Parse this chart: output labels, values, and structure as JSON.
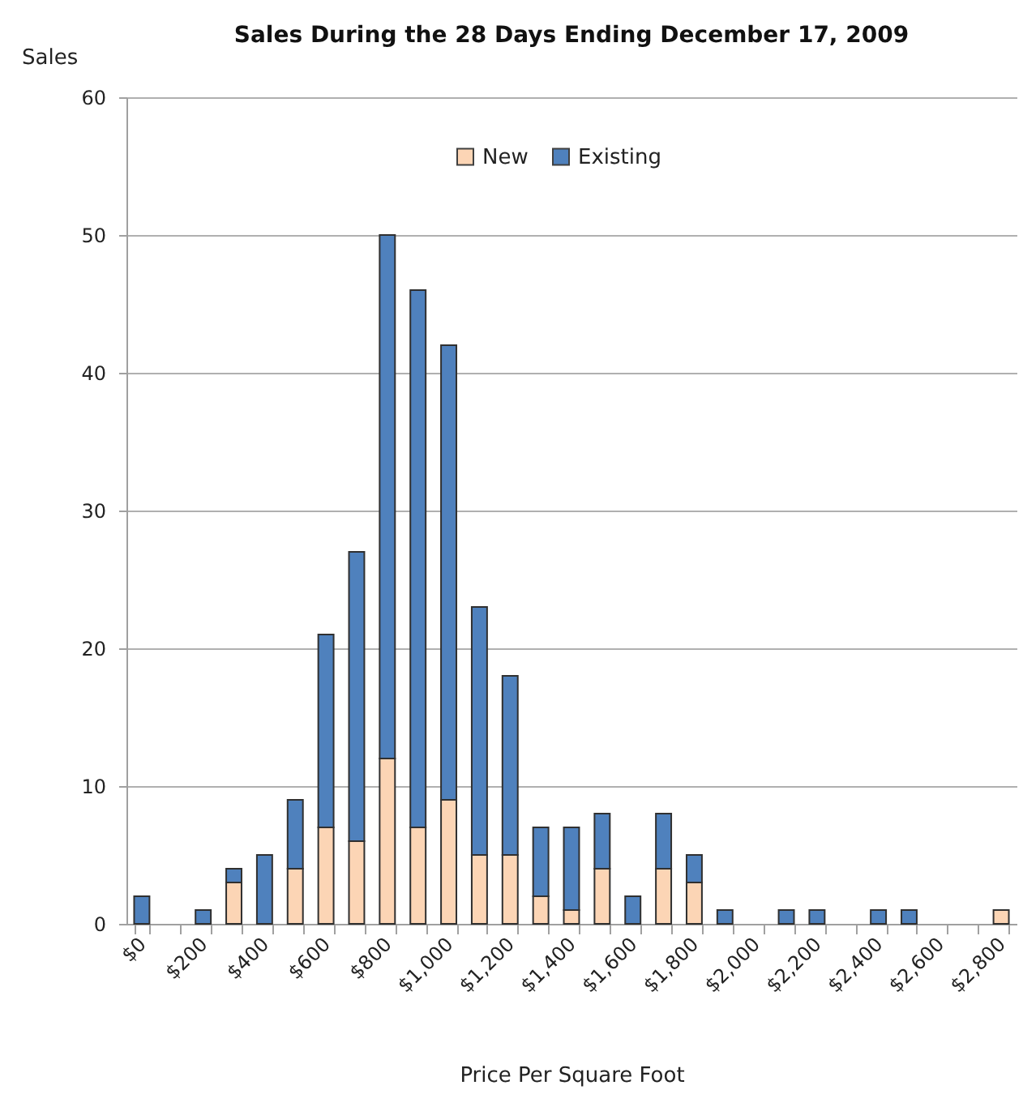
{
  "chart_data": {
    "type": "bar",
    "title": "Sales During the 28 Days Ending December 17, 2009",
    "xlabel": "Price Per Square Foot",
    "ylabel": "Sales",
    "categories": [
      "$0",
      null,
      "$200",
      null,
      "$400",
      null,
      "$600",
      null,
      "$800",
      null,
      "$1,000",
      null,
      "$1,200",
      null,
      "$1,400",
      null,
      "$1,600",
      null,
      "$1,800",
      null,
      "$2,000",
      null,
      "$2,200",
      null,
      "$2,400",
      null,
      "$2,600",
      null,
      "$2,800"
    ],
    "stacked": true,
    "series": [
      {
        "name": "New",
        "color": "#fcd5b5",
        "values": [
          0,
          0,
          0,
          3,
          0,
          4,
          7,
          6,
          12,
          7,
          9,
          5,
          5,
          2,
          1,
          4,
          0,
          4,
          3,
          0,
          0,
          0,
          0,
          0,
          0,
          0,
          0,
          0,
          1
        ]
      },
      {
        "name": "Existing",
        "color": "#4f81bd",
        "values": [
          2,
          0,
          1,
          1,
          5,
          5,
          14,
          21,
          38,
          39,
          33,
          18,
          13,
          5,
          6,
          4,
          2,
          4,
          2,
          1,
          0,
          1,
          1,
          0,
          1,
          1,
          0,
          0,
          0
        ]
      }
    ],
    "ylim": [
      0,
      60
    ],
    "yticks": [
      0,
      10,
      20,
      30,
      40,
      50,
      60
    ],
    "grid": "y",
    "legend": "top"
  }
}
